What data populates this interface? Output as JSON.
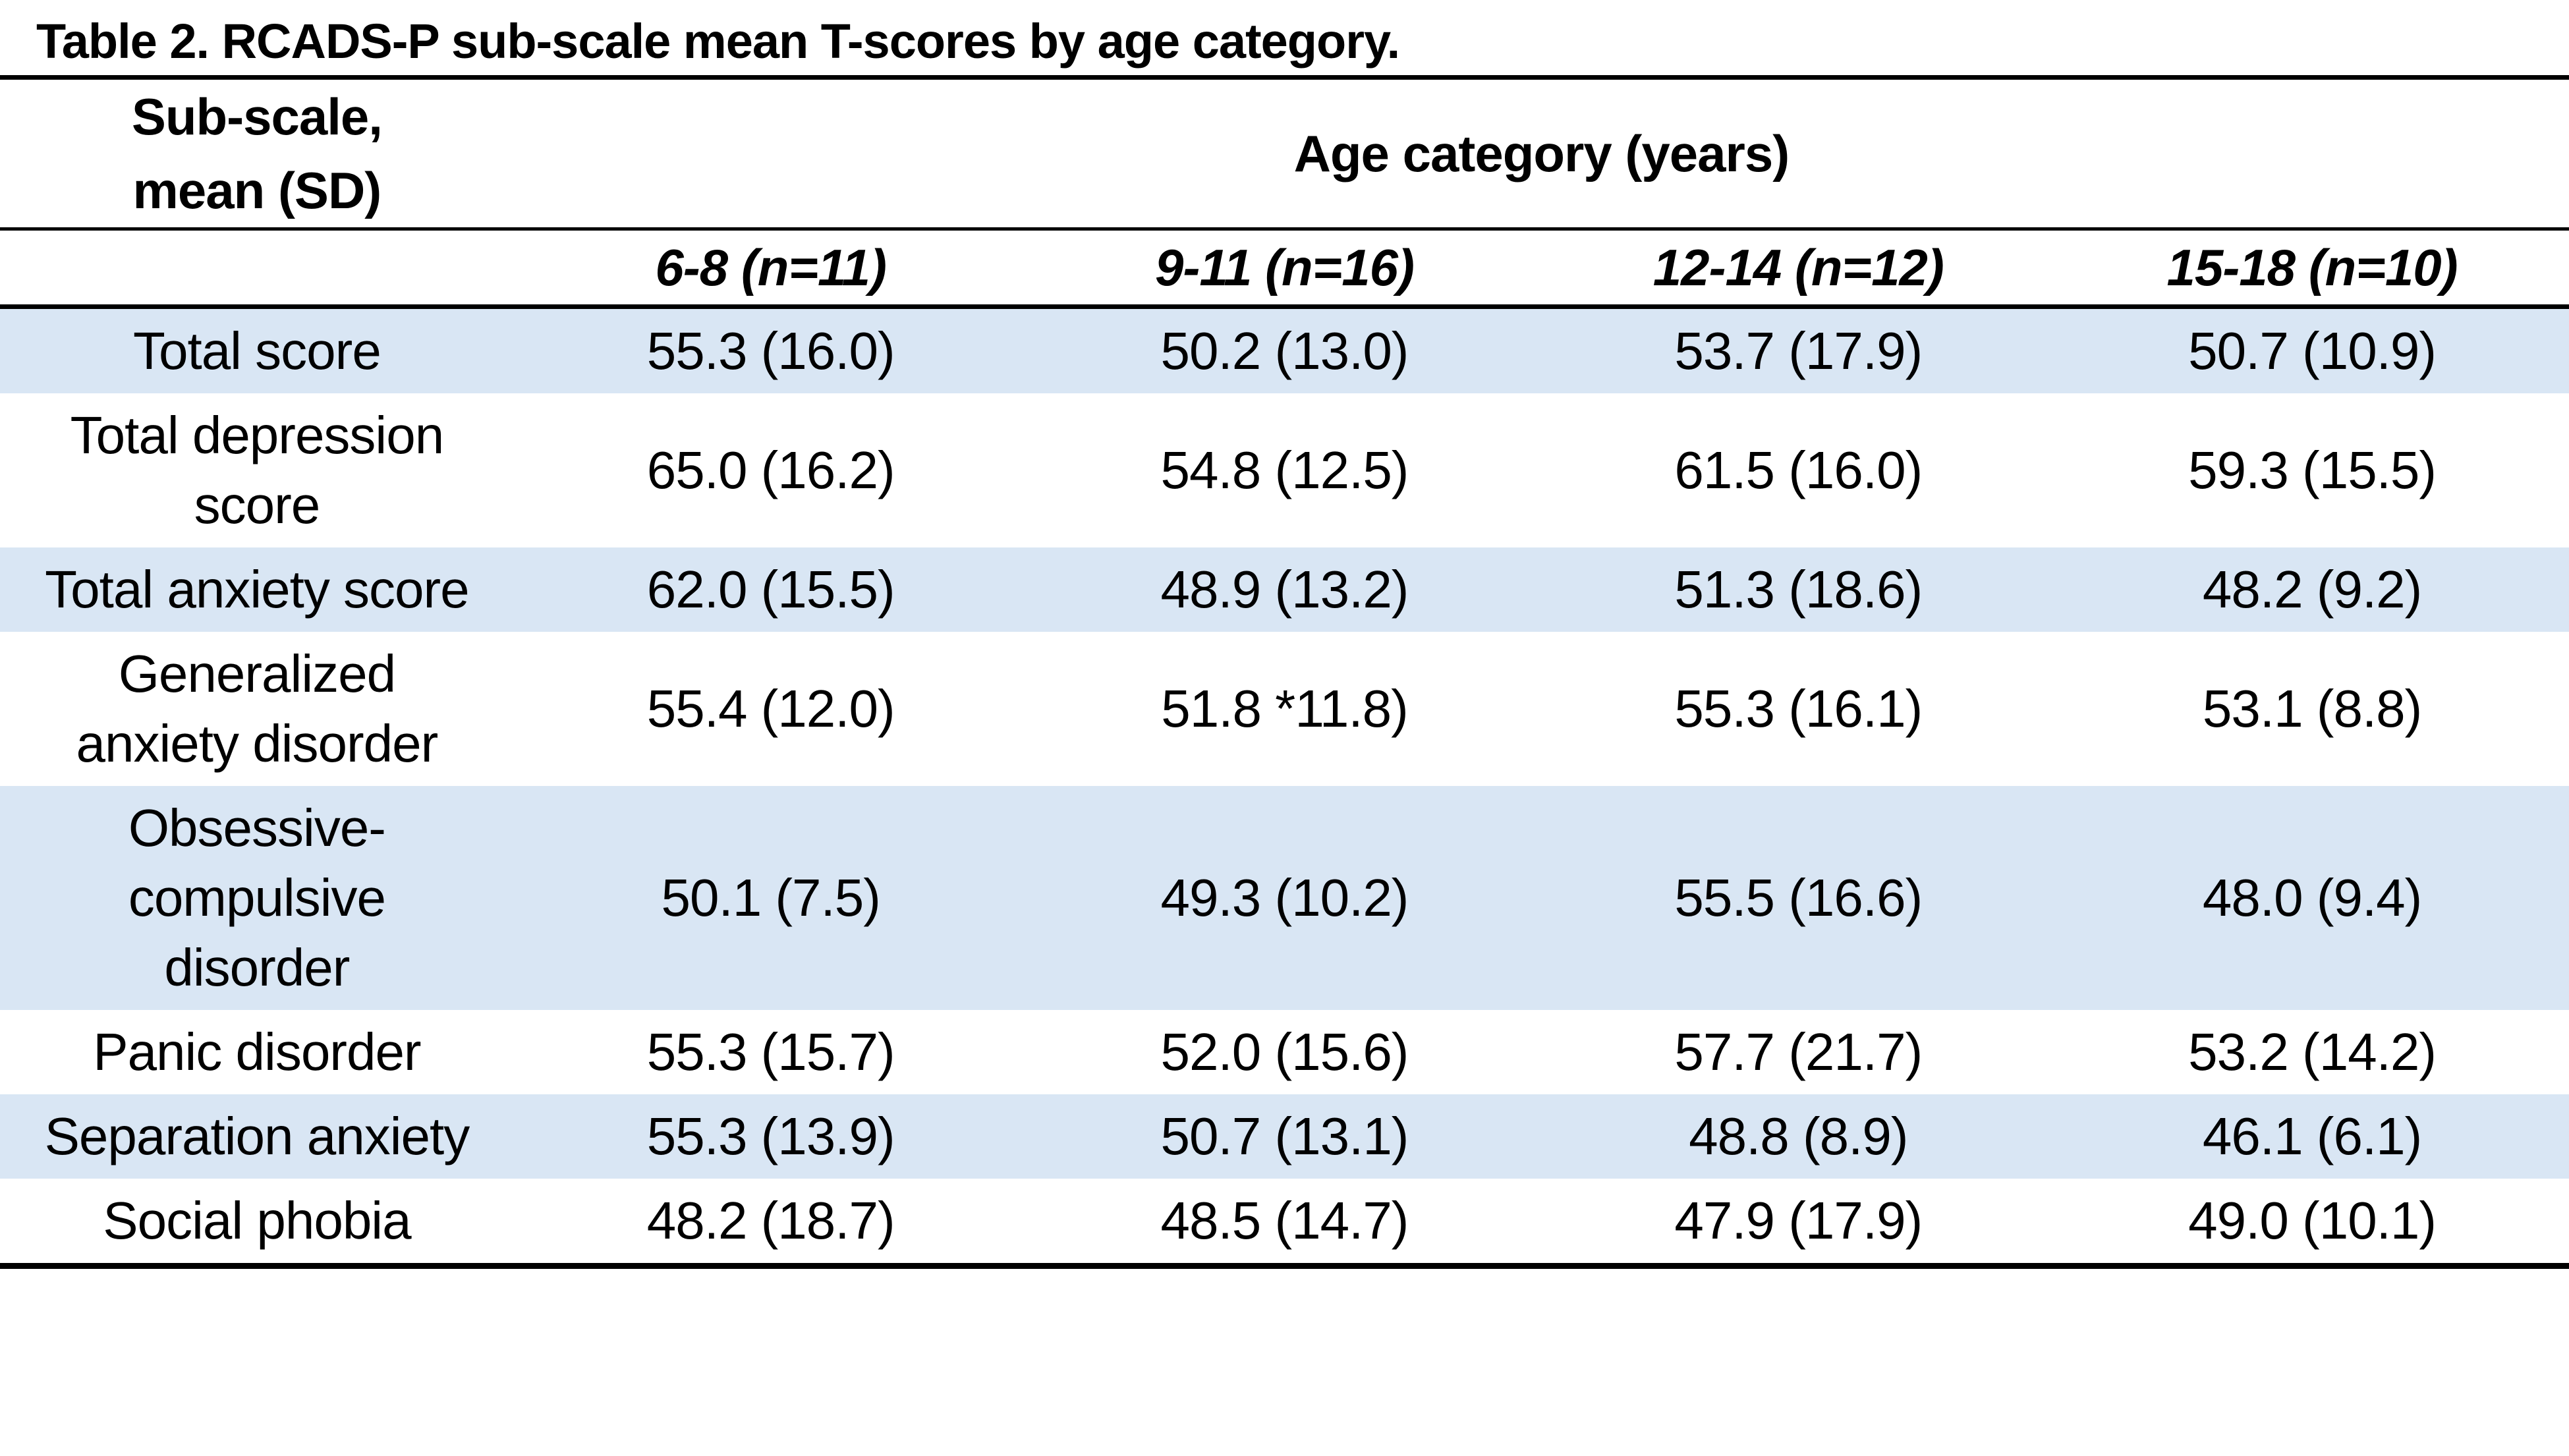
{
  "title": "Table 2. RCADS-P sub-scale mean T-scores by age category.",
  "colors": {
    "band": "#D9E6F4",
    "rule": "#000000",
    "background": "#FFFFFF",
    "text": "#000000"
  },
  "table": {
    "corner_header": "Sub-scale,\nmean (SD)",
    "span_header": "Age category (years)",
    "column_headers": [
      "6-8 (n=11)",
      "9-11 (n=16)",
      "12-14 (n=12)",
      "15-18 (n=10)"
    ],
    "rows": [
      {
        "label": "Total score",
        "values": [
          "55.3 (16.0)",
          "50.2 (13.0)",
          "53.7 (17.9)",
          "50.7 (10.9)"
        ]
      },
      {
        "label": "Total depression\nscore",
        "values": [
          "65.0 (16.2)",
          "54.8 (12.5)",
          "61.5 (16.0)",
          "59.3 (15.5)"
        ]
      },
      {
        "label": "Total anxiety score",
        "values": [
          "62.0 (15.5)",
          "48.9 (13.2)",
          "51.3 (18.6)",
          "48.2 (9.2)"
        ]
      },
      {
        "label": "Generalized\nanxiety disorder",
        "values": [
          "55.4 (12.0)",
          "51.8 *11.8)",
          "55.3 (16.1)",
          "53.1 (8.8)"
        ]
      },
      {
        "label": "Obsessive-\ncompulsive\ndisorder",
        "values": [
          "50.1 (7.5)",
          "49.3 (10.2)",
          "55.5 (16.6)",
          "48.0 (9.4)"
        ]
      },
      {
        "label": "Panic disorder",
        "values": [
          "55.3 (15.7)",
          "52.0 (15.6)",
          "57.7 (21.7)",
          "53.2 (14.2)"
        ]
      },
      {
        "label": "Separation anxiety",
        "values": [
          "55.3 (13.9)",
          "50.7 (13.1)",
          "48.8 (8.9)",
          "46.1 (6.1)"
        ]
      },
      {
        "label": "Social phobia",
        "values": [
          "48.2 (18.7)",
          "48.5 (14.7)",
          "47.9 (17.9)",
          "49.0 (10.1)"
        ]
      }
    ]
  },
  "chart_data": {
    "type": "table",
    "title": "Table 2. RCADS-P sub-scale mean T-scores by age category.",
    "columns": [
      "Sub-scale, mean (SD)",
      "6-8 (n=11)",
      "9-11 (n=16)",
      "12-14 (n=12)",
      "15-18 (n=10)"
    ],
    "rows": [
      [
        "Total score",
        "55.3 (16.0)",
        "50.2 (13.0)",
        "53.7 (17.9)",
        "50.7 (10.9)"
      ],
      [
        "Total depression score",
        "65.0 (16.2)",
        "54.8 (12.5)",
        "61.5 (16.0)",
        "59.3 (15.5)"
      ],
      [
        "Total anxiety score",
        "62.0 (15.5)",
        "48.9 (13.2)",
        "51.3 (18.6)",
        "48.2 (9.2)"
      ],
      [
        "Generalized anxiety disorder",
        "55.4 (12.0)",
        "51.8 *11.8)",
        "55.3 (16.1)",
        "53.1 (8.8)"
      ],
      [
        "Obsessive-compulsive disorder",
        "50.1 (7.5)",
        "49.3 (10.2)",
        "55.5 (16.6)",
        "48.0 (9.4)"
      ],
      [
        "Panic disorder",
        "55.3 (15.7)",
        "52.0 (15.6)",
        "57.7 (21.7)",
        "53.2 (14.2)"
      ],
      [
        "Separation anxiety",
        "55.3 (13.9)",
        "50.7 (13.1)",
        "48.8 (8.9)",
        "46.1 (6.1)"
      ],
      [
        "Social phobia",
        "48.2 (18.7)",
        "48.5 (14.7)",
        "47.9 (17.9)",
        "49.0 (10.1)"
      ]
    ]
  }
}
